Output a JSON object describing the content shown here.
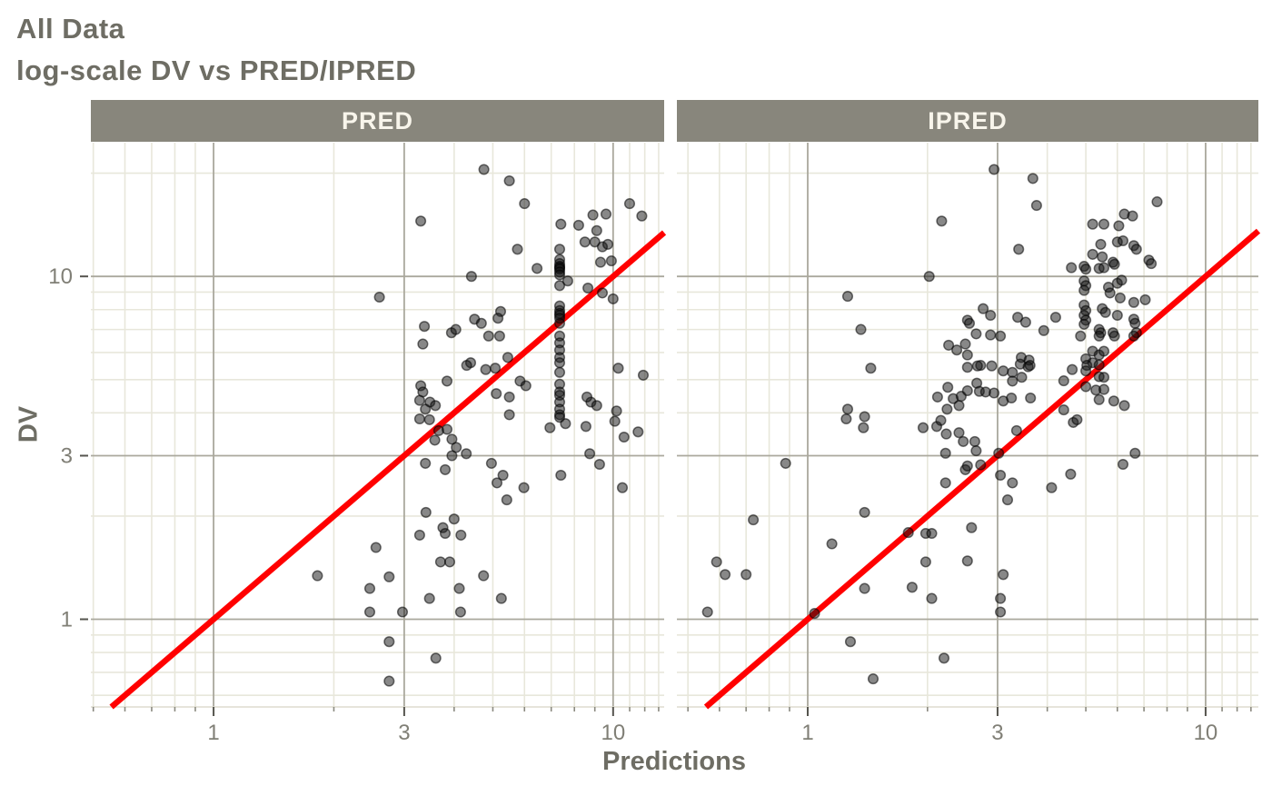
{
  "header": {
    "title": "All Data",
    "subtitle": "log-scale DV vs PRED/IPRED"
  },
  "colors": {
    "background": "#FFFFFF",
    "strip_fill": "#88867C",
    "strip_text": "#F8F5EB",
    "title": "#6E6D64",
    "tick_label": "#807F76",
    "grid_major": "#AAA89D",
    "grid_minor": "#E8E7DB",
    "axis_line": "#DDDCCF",
    "tick_major": "#55544E",
    "tick_minor": "#8B8A80",
    "point_fill": "#111111",
    "point_stroke": "#000000",
    "identity_line": "#FF0000"
  },
  "chart_data": {
    "type": "scatter",
    "scale": "log-log",
    "grid": true,
    "legend": "none",
    "xlabel": "Predictions",
    "ylabel": "DV",
    "identity_line": true,
    "x_ticks": {
      "values": [
        1,
        3,
        10
      ],
      "labels": [
        "1",
        "3",
        "10"
      ]
    },
    "y_ticks": {
      "values": [
        1,
        3,
        10
      ],
      "labels": [
        "1",
        "3",
        "10"
      ]
    },
    "x_minor": [
      0.5,
      0.6,
      0.7,
      0.8,
      0.9,
      2,
      4,
      5,
      6,
      7,
      8,
      9,
      11,
      12,
      13
    ],
    "y_minor": [
      0.6,
      0.7,
      0.8,
      0.9,
      2,
      4,
      5,
      6,
      7,
      8,
      9,
      20
    ],
    "x_domains": [
      [
        0.493,
        13.42
      ],
      [
        0.469,
        13.57
      ]
    ],
    "y_domain": [
      0.555,
      24.55
    ],
    "facets": [
      {
        "label": "PRED",
        "points": [
          [
            2.6,
            8.7
          ],
          [
            4.75,
            20.5
          ],
          [
            5.5,
            19
          ],
          [
            6,
            16.3
          ],
          [
            3.3,
            14.5
          ],
          [
            11,
            16.3
          ],
          [
            11.8,
            15
          ],
          [
            8.9,
            15.1
          ],
          [
            9.6,
            15.2
          ],
          [
            7.4,
            14.2
          ],
          [
            8.2,
            14.1
          ],
          [
            9.1,
            13.6
          ],
          [
            8.5,
            12.6
          ],
          [
            9,
            12.6
          ],
          [
            9.4,
            12.2
          ],
          [
            9.7,
            12.4
          ],
          [
            5.76,
            12
          ],
          [
            9.3,
            11
          ],
          [
            9.9,
            11.1
          ],
          [
            6.45,
            10.55
          ],
          [
            4.42,
            10
          ],
          [
            7.7,
            9.7
          ],
          [
            8.65,
            9.25
          ],
          [
            9.4,
            8.95
          ],
          [
            10,
            8.6
          ],
          [
            7.35,
            12
          ],
          [
            7.35,
            11.2
          ],
          [
            7.35,
            10.9
          ],
          [
            7.35,
            10.7
          ],
          [
            7.35,
            10.6
          ],
          [
            7.35,
            10.5
          ],
          [
            7.35,
            10.3
          ],
          [
            7.35,
            10.1
          ],
          [
            7.35,
            9.4
          ],
          [
            7.35,
            8.2
          ],
          [
            7.35,
            7.95
          ],
          [
            7.35,
            7.8
          ],
          [
            7.35,
            7.7
          ],
          [
            7.35,
            7.55
          ],
          [
            7.35,
            7.3
          ],
          [
            7.35,
            6.7
          ],
          [
            7.35,
            6.4
          ],
          [
            7.35,
            6.1
          ],
          [
            7.35,
            5.8
          ],
          [
            7.35,
            5.6
          ],
          [
            7.35,
            5.25
          ],
          [
            7.35,
            4.85
          ],
          [
            7.35,
            4.6
          ],
          [
            7.35,
            4.5
          ],
          [
            7.35,
            4.3
          ],
          [
            7.35,
            4.1
          ],
          [
            7.35,
            3.95
          ],
          [
            7.35,
            3.88
          ],
          [
            3.37,
            7.15
          ],
          [
            3.94,
            6.85
          ],
          [
            4.04,
            7
          ],
          [
            3.34,
            6.35
          ],
          [
            4.5,
            7.5
          ],
          [
            4.68,
            7.3
          ],
          [
            4.88,
            6.7
          ],
          [
            5.2,
            6.7
          ],
          [
            5.23,
            7.9
          ],
          [
            5.15,
            7.55
          ],
          [
            5.45,
            5.8
          ],
          [
            4.4,
            5.6
          ],
          [
            4.3,
            5.5
          ],
          [
            4.8,
            5.35
          ],
          [
            5.07,
            5.4
          ],
          [
            5.1,
            4.55
          ],
          [
            5.5,
            4.45
          ],
          [
            3.3,
            4.8
          ],
          [
            3.34,
            4.6
          ],
          [
            3.48,
            4.3
          ],
          [
            3.28,
            4.35
          ],
          [
            3.39,
            4.1
          ],
          [
            3.59,
            4.2
          ],
          [
            3.84,
            4.95
          ],
          [
            5.85,
            4.95
          ],
          [
            6.05,
            4.8
          ],
          [
            8.8,
            4.3
          ],
          [
            9.1,
            4.2
          ],
          [
            10.2,
            4.05
          ],
          [
            5.5,
            3.95
          ],
          [
            8.6,
            4.45
          ],
          [
            10.3,
            5.4
          ],
          [
            11.9,
            5.15
          ],
          [
            3.28,
            3.84
          ],
          [
            3.47,
            3.82
          ],
          [
            3.66,
            3.55
          ],
          [
            3.58,
            3.33
          ],
          [
            3.84,
            3.58
          ],
          [
            3.95,
            3.35
          ],
          [
            4.05,
            3.17
          ],
          [
            3.95,
            3
          ],
          [
            4.29,
            3.04
          ],
          [
            3.39,
            2.85
          ],
          [
            3.8,
            2.73
          ],
          [
            4.96,
            2.85
          ],
          [
            5.12,
            2.5
          ],
          [
            5.3,
            2.63
          ],
          [
            5.98,
            2.42
          ],
          [
            5.42,
            2.23
          ],
          [
            7.4,
            2.63
          ],
          [
            8.74,
            3.04
          ],
          [
            9.25,
            2.83
          ],
          [
            10.55,
            2.42
          ],
          [
            6.95,
            3.62
          ],
          [
            7.6,
            3.72
          ],
          [
            8.55,
            3.65
          ],
          [
            10.1,
            3.78
          ],
          [
            10.65,
            3.4
          ],
          [
            11.55,
            3.52
          ],
          [
            3.4,
            2.05
          ],
          [
            4,
            1.96
          ],
          [
            3.75,
            1.85
          ],
          [
            3.8,
            1.78
          ],
          [
            3.28,
            1.76
          ],
          [
            4.16,
            1.76
          ],
          [
            3.7,
            1.47
          ],
          [
            3.9,
            1.47
          ],
          [
            4.74,
            1.34
          ],
          [
            4.12,
            1.23
          ],
          [
            3.47,
            1.15
          ],
          [
            5.25,
            1.15
          ],
          [
            2.97,
            1.05
          ],
          [
            4.15,
            1.05
          ],
          [
            3.6,
            0.77
          ],
          [
            2.55,
            1.62
          ],
          [
            1.82,
            1.34
          ],
          [
            2.46,
            1.23
          ],
          [
            2.75,
            1.33
          ],
          [
            2.46,
            1.05
          ],
          [
            2.75,
            0.86
          ],
          [
            2.75,
            0.66
          ]
        ]
      },
      {
        "label": "IPRED",
        "points": [
          [
            2.17,
            14.5
          ],
          [
            2.02,
            10
          ],
          [
            1.26,
            8.75
          ],
          [
            1.36,
            7
          ],
          [
            1.44,
            5.4
          ],
          [
            1.26,
            4.1
          ],
          [
            1.39,
            3.9
          ],
          [
            2.25,
            4.75
          ],
          [
            2.12,
            4.45
          ],
          [
            2.32,
            4.4
          ],
          [
            2.43,
            4.47
          ],
          [
            2.24,
            4.1
          ],
          [
            2.4,
            4.2
          ],
          [
            2.26,
            6.3
          ],
          [
            2.37,
            6.1
          ],
          [
            2.49,
            6.35
          ],
          [
            2.94,
            20.5
          ],
          [
            3.68,
            19.3
          ],
          [
            3.76,
            16.1
          ],
          [
            7.55,
            16.5
          ],
          [
            3.39,
            12
          ],
          [
            6.25,
            15.2
          ],
          [
            6.55,
            15
          ],
          [
            5.2,
            14.2
          ],
          [
            5.55,
            14.2
          ],
          [
            6.05,
            14.05
          ],
          [
            5.45,
            12.4
          ],
          [
            6,
            12.6
          ],
          [
            6.2,
            12.7
          ],
          [
            6.6,
            12.3
          ],
          [
            6.7,
            12
          ],
          [
            7.2,
            11.15
          ],
          [
            7.3,
            10.9
          ],
          [
            5.2,
            11.6
          ],
          [
            5.5,
            11.4
          ],
          [
            5.85,
            11
          ],
          [
            5.9,
            10.85
          ],
          [
            4.6,
            10.6
          ],
          [
            4.95,
            10.7
          ],
          [
            5,
            10.5
          ],
          [
            5.4,
            10.55
          ],
          [
            5.55,
            10.6
          ],
          [
            4.95,
            9.7
          ],
          [
            5,
            9.4
          ],
          [
            4.95,
            9.1
          ],
          [
            5.7,
            9.3
          ],
          [
            6,
            9.55
          ],
          [
            5.75,
            8.95
          ],
          [
            6.15,
            9.75
          ],
          [
            6.1,
            8.65
          ],
          [
            6.6,
            8.4
          ],
          [
            7.05,
            8.55
          ],
          [
            4.95,
            8.25
          ],
          [
            5,
            7.95
          ],
          [
            4.95,
            7.7
          ],
          [
            5,
            7.45
          ],
          [
            4.95,
            7.25
          ],
          [
            5.5,
            8.05
          ],
          [
            5.6,
            7.85
          ],
          [
            6,
            7.7
          ],
          [
            6.6,
            7.5
          ],
          [
            6.65,
            7.3
          ],
          [
            6.7,
            6.85
          ],
          [
            6.6,
            6.7
          ],
          [
            3.37,
            7.6
          ],
          [
            3.53,
            7.35
          ],
          [
            2.76,
            8.05
          ],
          [
            2.88,
            7.7
          ],
          [
            2.52,
            7.45
          ],
          [
            2.55,
            7.3
          ],
          [
            2.65,
            6.8
          ],
          [
            2.88,
            6.75
          ],
          [
            3.05,
            6.7
          ],
          [
            3.92,
            6.95
          ],
          [
            4.2,
            7.6
          ],
          [
            5.4,
            7
          ],
          [
            5.45,
            6.85
          ],
          [
            5.4,
            6.7
          ],
          [
            4.85,
            6.7
          ],
          [
            5.85,
            6.85
          ],
          [
            5.9,
            6.7
          ],
          [
            5.2,
            6.05
          ],
          [
            5.4,
            5.9
          ],
          [
            5.55,
            6.05
          ],
          [
            5,
            5.75
          ],
          [
            5.2,
            5.6
          ],
          [
            5.03,
            5.5
          ],
          [
            5.4,
            5.52
          ],
          [
            4.62,
            5.35
          ],
          [
            5,
            5.3
          ],
          [
            5.4,
            5.1
          ],
          [
            5.55,
            5.08
          ],
          [
            3.44,
            5.8
          ],
          [
            3.6,
            5.7
          ],
          [
            3.42,
            5.55
          ],
          [
            3.58,
            5.45
          ],
          [
            3.62,
            5.5
          ],
          [
            2.52,
            5.9
          ],
          [
            2.72,
            5.5
          ],
          [
            2.67,
            5.48
          ],
          [
            2.9,
            5.48
          ],
          [
            2.52,
            5.43
          ],
          [
            3.1,
            5.3
          ],
          [
            3.27,
            5.25
          ],
          [
            3.45,
            5.08
          ],
          [
            3.27,
            4.95
          ],
          [
            4.4,
            4.96
          ],
          [
            5,
            4.77
          ],
          [
            5.3,
            4.66
          ],
          [
            5.55,
            4.68
          ],
          [
            2.66,
            4.88
          ],
          [
            2.94,
            4.57
          ],
          [
            3.1,
            4.33
          ],
          [
            3.25,
            4.42
          ],
          [
            3.63,
            4.42
          ],
          [
            2.52,
            4.64
          ],
          [
            2.7,
            4.62
          ],
          [
            2.8,
            4.6
          ],
          [
            5.4,
            4.37
          ],
          [
            5.88,
            4.33
          ],
          [
            6.25,
            4.2
          ],
          [
            4.4,
            4.08
          ],
          [
            0.88,
            2.85
          ],
          [
            0.73,
            1.95
          ],
          [
            1.39,
            2.05
          ],
          [
            1.15,
            1.66
          ],
          [
            0.59,
            1.47
          ],
          [
            0.62,
            1.35
          ],
          [
            0.7,
            1.35
          ],
          [
            0.56,
            1.05
          ],
          [
            1.04,
            1.04
          ],
          [
            1.28,
            0.86
          ],
          [
            1.46,
            0.67
          ],
          [
            2.2,
            0.77
          ],
          [
            1.79,
            1.79
          ],
          [
            1.98,
            1.78
          ],
          [
            2.05,
            1.78
          ],
          [
            1.39,
            1.23
          ],
          [
            1.83,
            1.24
          ],
          [
            1.98,
            1.47
          ],
          [
            2.05,
            1.15
          ],
          [
            2.22,
            2.5
          ],
          [
            1.38,
            3.62
          ],
          [
            1.25,
            3.84
          ],
          [
            1.95,
            3.62
          ],
          [
            2.11,
            3.65
          ],
          [
            2.16,
            3.8
          ],
          [
            2.23,
            3.47
          ],
          [
            2.4,
            3.5
          ],
          [
            2.46,
            3.3
          ],
          [
            2.49,
            2.73
          ],
          [
            2.22,
            3.05
          ],
          [
            4.65,
            3.75
          ],
          [
            4.75,
            3.82
          ],
          [
            3.35,
            3.55
          ],
          [
            2.63,
            3.3
          ],
          [
            2.65,
            3.1
          ],
          [
            3.02,
            3.05
          ],
          [
            2.52,
            2.8
          ],
          [
            2.72,
            2.82
          ],
          [
            3.05,
            2.63
          ],
          [
            3.27,
            2.5
          ],
          [
            4.1,
            2.42
          ],
          [
            4.58,
            2.65
          ],
          [
            3.18,
            2.23
          ],
          [
            6.2,
            2.83
          ],
          [
            6.65,
            3.05
          ],
          [
            2.58,
            1.85
          ],
          [
            2.52,
            1.48
          ],
          [
            3.1,
            1.35
          ],
          [
            3.05,
            1.15
          ],
          [
            3.05,
            1.05
          ]
        ]
      }
    ]
  }
}
